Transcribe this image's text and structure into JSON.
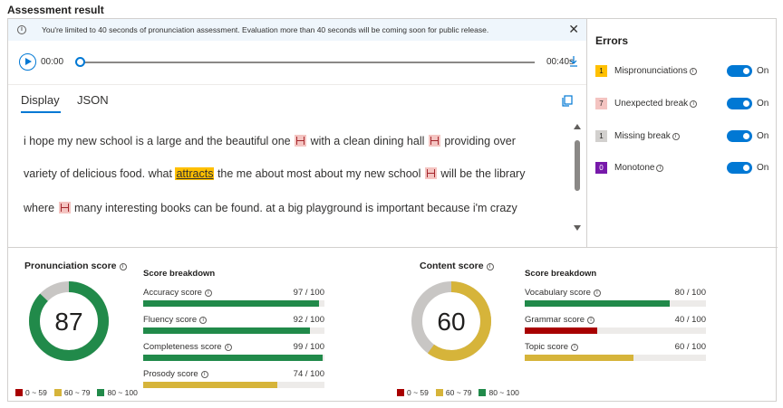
{
  "title": "Assessment result",
  "banner": {
    "text": "You're limited to 40 seconds of pronunciation assessment. Evaluation more than 40 seconds will be coming soon for public release."
  },
  "player": {
    "current": "00:00",
    "duration": "00:40s",
    "progress": 0
  },
  "tabs": [
    {
      "label": "Display",
      "active": true
    },
    {
      "label": "JSON",
      "active": false
    }
  ],
  "transcript": {
    "line1": {
      "a": "i hope my new school is a large and the beautiful one",
      "b": "with a clean dining hall",
      "c": "providing over"
    },
    "line2": {
      "a": "variety of delicious food. what",
      "mis": "attracts",
      "b": "the me about most about my new school",
      "c": "will be the library"
    },
    "line3": {
      "a": "where",
      "b": "many interesting books can be found. at a big playground is important because i'm crazy"
    }
  },
  "errors": {
    "title": "Errors",
    "items": [
      {
        "count": "1",
        "label": "Mispronunciations",
        "color": "#ffc000",
        "toggle": "On"
      },
      {
        "count": "7",
        "label": "Unexpected break",
        "color": "#f4c4c1",
        "toggle": "On"
      },
      {
        "count": "1",
        "label": "Missing break",
        "color": "#d2d0ce",
        "toggle": "On"
      },
      {
        "count": "0",
        "label": "Monotone",
        "color": "#7719aa",
        "toggle": "On"
      }
    ]
  },
  "pronunciation": {
    "title": "Pronunciation score",
    "score": "87",
    "breakdown_title": "Score breakdown",
    "metrics": [
      {
        "label": "Accuracy score",
        "value": "97 / 100",
        "fraction": 0.97,
        "color": "#218a4a"
      },
      {
        "label": "Fluency score",
        "value": "92 / 100",
        "fraction": 0.92,
        "color": "#218a4a"
      },
      {
        "label": "Completeness score",
        "value": "99 / 100",
        "fraction": 0.99,
        "color": "#218a4a"
      },
      {
        "label": "Prosody score",
        "value": "74 / 100",
        "fraction": 0.74,
        "color": "#d6b43a"
      }
    ]
  },
  "content": {
    "title": "Content score",
    "score": "60",
    "breakdown_title": "Score breakdown",
    "metrics": [
      {
        "label": "Vocabulary score",
        "value": "80 / 100",
        "fraction": 0.8,
        "color": "#218a4a"
      },
      {
        "label": "Grammar score",
        "value": "40 / 100",
        "fraction": 0.4,
        "color": "#a80000"
      },
      {
        "label": "Topic score",
        "value": "60 / 100",
        "fraction": 0.6,
        "color": "#d6b43a"
      }
    ]
  },
  "legend": [
    {
      "label": "0 ~ 59",
      "color": "#a80000"
    },
    {
      "label": "60 ~ 79",
      "color": "#d6b43a"
    },
    {
      "label": "80 ~ 100",
      "color": "#218a4a"
    }
  ],
  "colors": {
    "accent": "#0078d4",
    "ring_track": "#c8c6c4"
  }
}
